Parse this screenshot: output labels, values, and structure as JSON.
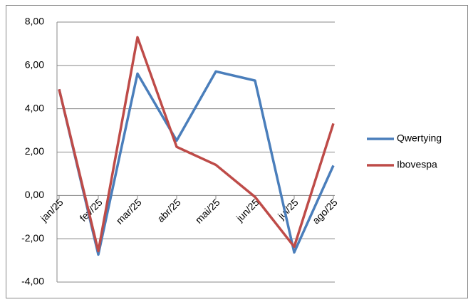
{
  "chart_data": {
    "type": "line",
    "categories": [
      "jan/25",
      "fev/25",
      "mar/25",
      "abr/25",
      "mai/25",
      "jun/25",
      "jul/25",
      "ago/25"
    ],
    "series": [
      {
        "name": "Qwertying",
        "color": "#4a7ebb",
        "values": [
          4.9,
          -2.73,
          5.62,
          2.53,
          5.72,
          5.3,
          -2.63,
          1.38
        ]
      },
      {
        "name": "Ibovespa",
        "color": "#be4b48",
        "values": [
          4.9,
          -2.57,
          7.3,
          2.24,
          1.41,
          -0.07,
          -2.37,
          3.32
        ]
      }
    ],
    "ylim": [
      -4,
      8
    ],
    "yticks": [
      {
        "value": -4,
        "label": "-4,00"
      },
      {
        "value": -2,
        "label": "-2,00"
      },
      {
        "value": 0,
        "label": "0,00"
      },
      {
        "value": 2,
        "label": "2,00"
      },
      {
        "value": 4,
        "label": "4,00"
      },
      {
        "value": 6,
        "label": "6,00"
      },
      {
        "value": 8,
        "label": "8,00"
      }
    ],
    "grid": true,
    "legend": "right"
  }
}
